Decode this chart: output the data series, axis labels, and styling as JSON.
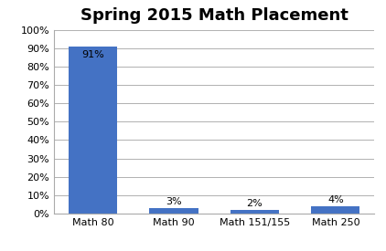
{
  "title": "Spring 2015 Math Placement",
  "categories": [
    "Math 80",
    "Math 90",
    "Math 151/155",
    "Math 250"
  ],
  "values": [
    0.91,
    0.03,
    0.02,
    0.04
  ],
  "bar_labels": [
    "91%",
    "3%",
    "2%",
    "4%"
  ],
  "bar_color": "#4472C4",
  "ylim": [
    0,
    1.0
  ],
  "yticks": [
    0,
    0.1,
    0.2,
    0.3,
    0.4,
    0.5,
    0.6,
    0.7,
    0.8,
    0.9,
    1.0
  ],
  "ytick_labels": [
    "0%",
    "10%",
    "20%",
    "30%",
    "40%",
    "50%",
    "60%",
    "70%",
    "80%",
    "90%",
    "100%"
  ],
  "title_fontsize": 13,
  "label_fontsize": 8,
  "tick_fontsize": 8,
  "background_color": "#ffffff",
  "grid_color": "#b0b0b0"
}
